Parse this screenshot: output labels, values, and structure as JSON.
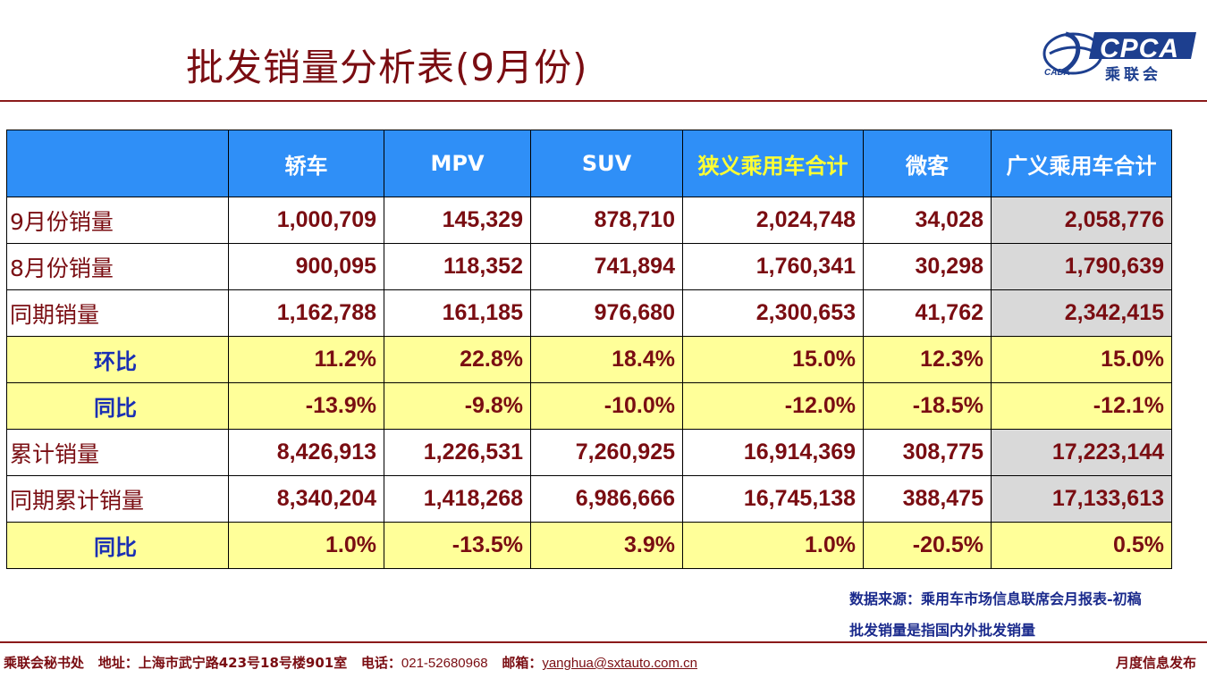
{
  "header": {
    "title": "批发销量分析表(9月份)",
    "logo_text": "CPCA",
    "logo_sub": "乘联会",
    "logo_mark": "CADA"
  },
  "table": {
    "columns": [
      "",
      "轿车",
      "MPV",
      "SUV",
      "狭义乘用车合计",
      "微客",
      "广义乘用车合计"
    ],
    "rows": [
      {
        "label": "9月份销量",
        "type": "value",
        "values": [
          "1,000,709",
          "145,329",
          "878,710",
          "2,024,748",
          "34,028",
          "2,058,776"
        ]
      },
      {
        "label": "8月份销量",
        "type": "value",
        "values": [
          "900,095",
          "118,352",
          "741,894",
          "1,760,341",
          "30,298",
          "1,790,639"
        ]
      },
      {
        "label": "同期销量",
        "type": "value",
        "values": [
          "1,162,788",
          "161,185",
          "976,680",
          "2,300,653",
          "41,762",
          "2,342,415"
        ]
      },
      {
        "label": "环比",
        "type": "ratio",
        "values": [
          "11.2%",
          "22.8%",
          "18.4%",
          "15.0%",
          "12.3%",
          "15.0%"
        ]
      },
      {
        "label": "同比",
        "type": "ratio",
        "values": [
          "-13.9%",
          "-9.8%",
          "-10.0%",
          "-12.0%",
          "-18.5%",
          "-12.1%"
        ]
      },
      {
        "label": "累计销量",
        "type": "value",
        "values": [
          "8,426,913",
          "1,226,531",
          "7,260,925",
          "16,914,369",
          "308,775",
          "17,223,144"
        ]
      },
      {
        "label": "同期累计销量",
        "type": "value",
        "values": [
          "8,340,204",
          "1,418,268",
          "6,986,666",
          "16,745,138",
          "388,475",
          "17,133,613"
        ]
      },
      {
        "label": "同比",
        "type": "ratio",
        "values": [
          "1.0%",
          "-13.5%",
          "3.9%",
          "1.0%",
          "-20.5%",
          "0.5%"
        ]
      }
    ]
  },
  "notes": {
    "source": "数据来源：乘用车市场信息联席会月报表-初稿",
    "definition": "批发销量是指国内外批发销量"
  },
  "footer": {
    "org": "乘联会秘书处",
    "address_label": "地址：",
    "address": "上海市武宁路423号18号楼901室",
    "phone_label": "电话：",
    "phone": "021-52680968",
    "email_label": "邮箱：",
    "email": "yanghua@sxtauto.com.cn",
    "right": "月度信息发布"
  },
  "colors": {
    "title": "#7a0d12",
    "header_bg": "#2f8ff7",
    "highlight_header": "#ffff33",
    "ratio_bg": "#ffff99",
    "total_col_bg": "#d9d9d9"
  }
}
